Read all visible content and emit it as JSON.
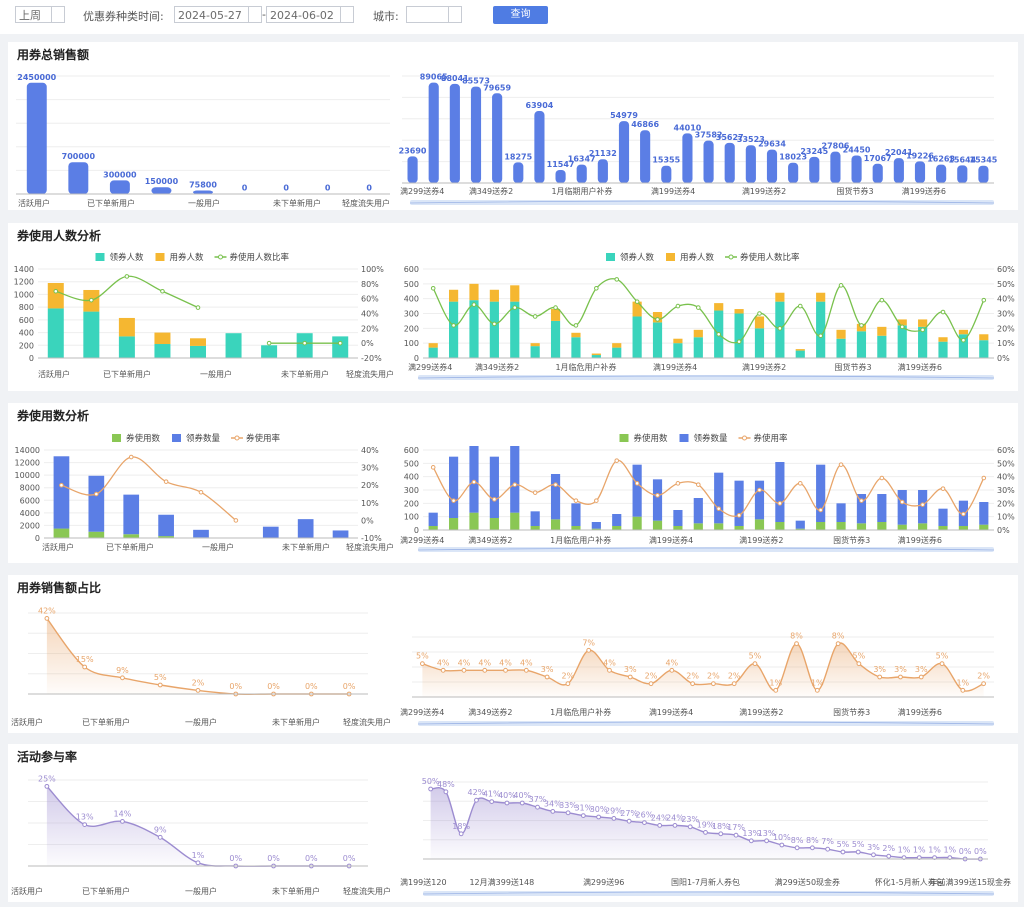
{
  "filters": {
    "period": "上周",
    "date_label": "优惠券种类时间:",
    "date_start": "2024-05-27",
    "date_sep": "-",
    "date_end": "2024-06-02",
    "city_label": "城市:",
    "city_value": "",
    "query_button": "查询"
  },
  "colors": {
    "blue": "#5b7ee5",
    "teal": "#3ad4bc",
    "orange": "#f5b731",
    "green": "#8ac754",
    "line_green": "#79c14d",
    "line_orange": "#e8a56a",
    "purple": "#9c8cd0"
  },
  "sections": [
    {
      "title": "用券总销售额"
    },
    {
      "title": "券使用人数分析"
    },
    {
      "title": "券使用数分析"
    },
    {
      "title": "用券销售额占比"
    },
    {
      "title": "活动参与率"
    }
  ],
  "chart_data": [
    {
      "id": "sales-left",
      "type": "bar",
      "categories": [
        "活跃用户",
        "",
        "已下单新用户",
        "",
        "一般用户",
        "",
        "未下单新用户",
        "",
        "轻度流失用户"
      ],
      "x_labels": [
        "活跃用户",
        "已下单新用户",
        "一般用户",
        "未下单新用户",
        "轻度流失用户"
      ],
      "values": [
        2450000,
        700000,
        300000,
        150000,
        75800,
        0,
        0,
        0,
        0
      ],
      "data_labels": [
        "2450000",
        "700000",
        "300000",
        "150000",
        "75800",
        "0",
        "0",
        "0",
        "0"
      ],
      "ylim": [
        0,
        2600000
      ]
    },
    {
      "id": "sales-right",
      "type": "bar",
      "x_labels": [
        "满299送券4",
        "满349送券2",
        "1月临期用户补券",
        "满199送券4",
        "满199送券2",
        "囤货节券3",
        "满199送券6"
      ],
      "values": [
        23690,
        89065,
        88041,
        85573,
        79659,
        18275,
        63904,
        11547,
        16347,
        21132,
        54979,
        46866,
        15355,
        44010,
        37582,
        35627,
        33523,
        29634,
        18023,
        23245,
        27806,
        24450,
        17067,
        22041,
        19226,
        16263,
        15644,
        15345
      ],
      "data_labels": [
        "23690",
        "89065",
        "88041",
        "85573",
        "79659",
        "18275",
        "63904",
        "11547",
        "16347",
        "21132",
        "54979",
        "46866",
        "15355",
        "44010",
        "37582",
        "35627",
        "33523",
        "29634",
        "18023",
        "23245",
        "27806",
        "24450",
        "17067",
        "22041",
        "19226",
        "16263",
        "15644",
        "15345"
      ],
      "ylim": [
        0,
        95000
      ]
    },
    {
      "id": "people-left",
      "type": "bar",
      "legend": [
        "领券人数",
        "用券人数",
        "券使用人数比率"
      ],
      "x_labels": [
        "活跃用户",
        "已下单新用户",
        "一般用户",
        "未下单新用户",
        "轻度流失用户"
      ],
      "y_ticks": [
        "1400",
        "1200",
        "1000",
        "800",
        "600",
        "400",
        "200",
        "0"
      ],
      "y2_ticks": [
        "100%",
        "80%",
        "60%",
        "40%",
        "20%",
        "0%",
        "-20%"
      ],
      "claim": [
        780,
        730,
        340,
        220,
        190,
        390,
        200,
        390,
        340
      ],
      "use": [
        400,
        340,
        290,
        180,
        120,
        0,
        0,
        0,
        0
      ],
      "ratio": [
        70,
        58,
        90,
        70,
        48,
        null,
        0,
        0,
        0
      ],
      "ylim": [
        0,
        1400
      ],
      "y2lim": [
        -20,
        100
      ]
    },
    {
      "id": "people-right",
      "type": "bar",
      "legend": [
        "领券人数",
        "用券人数",
        "券使用人数比率"
      ],
      "x_labels": [
        "满299送券4",
        "满349送券2",
        "1月临危用户补券",
        "满199送券4",
        "满199送券2",
        "囤货节券3",
        "满199送券6"
      ],
      "y_ticks": [
        "600",
        "500",
        "400",
        "300",
        "200",
        "100",
        "0"
      ],
      "y2_ticks": [
        "60%",
        "50%",
        "40%",
        "30%",
        "20%",
        "10%",
        "0%"
      ],
      "claim": [
        70,
        380,
        390,
        380,
        380,
        80,
        250,
        140,
        20,
        70,
        280,
        240,
        100,
        140,
        320,
        300,
        200,
        380,
        50,
        380,
        130,
        180,
        150,
        220,
        210,
        110,
        160,
        120
      ],
      "use": [
        30,
        80,
        110,
        80,
        110,
        20,
        80,
        30,
        10,
        30,
        100,
        70,
        30,
        50,
        50,
        30,
        80,
        60,
        10,
        60,
        60,
        50,
        60,
        40,
        50,
        30,
        30,
        40
      ],
      "ratio": [
        47,
        22,
        36,
        23,
        34,
        28,
        34,
        22,
        47,
        53,
        38,
        26,
        35,
        34,
        16,
        11,
        30,
        20,
        35,
        15,
        49,
        22,
        39,
        21,
        19,
        31,
        12,
        39
      ],
      "ylim": [
        0,
        600
      ],
      "y2lim": [
        0,
        60
      ]
    },
    {
      "id": "count-left",
      "type": "bar",
      "legend": [
        "券使用数",
        "领券数量",
        "券使用率"
      ],
      "x_labels": [
        "活跃用户",
        "已下单新用户",
        "一般用户",
        "未下单新用户",
        "轻度流失用户"
      ],
      "y_ticks": [
        "14000",
        "12000",
        "10000",
        "8000",
        "6000",
        "4000",
        "2000",
        "0"
      ],
      "y2_ticks": [
        "40%",
        "30%",
        "20%",
        "10%",
        "0%",
        "-10%"
      ],
      "used": [
        1500,
        1000,
        600,
        300,
        100,
        0,
        0,
        0,
        0
      ],
      "claimed": [
        11500,
        8900,
        6300,
        3400,
        1200,
        0,
        1800,
        3000,
        1200
      ],
      "rate": [
        20,
        15,
        36,
        22,
        16,
        0,
        null,
        null,
        null
      ],
      "ylim": [
        0,
        14000
      ],
      "y2lim": [
        -10,
        40
      ]
    },
    {
      "id": "count-right",
      "type": "bar",
      "legend": [
        "券使用数",
        "领券数量",
        "券使用率"
      ],
      "x_labels": [
        "满299送券4",
        "满349送券2",
        "1月临危用户补券",
        "满199送券4",
        "满199送券2",
        "囤货节券3",
        "满199送券6"
      ],
      "y_ticks": [
        "600",
        "500",
        "400",
        "300",
        "200",
        "100",
        "0"
      ],
      "y2_ticks": [
        "60%",
        "50%",
        "40%",
        "30%",
        "20%",
        "10%",
        "0%"
      ],
      "used": [
        30,
        90,
        130,
        90,
        130,
        30,
        80,
        30,
        10,
        30,
        100,
        70,
        30,
        50,
        50,
        30,
        80,
        60,
        10,
        60,
        60,
        50,
        60,
        40,
        50,
        30,
        30,
        40
      ],
      "claimed": [
        100,
        460,
        500,
        460,
        500,
        110,
        340,
        170,
        50,
        90,
        390,
        310,
        120,
        190,
        380,
        340,
        290,
        450,
        60,
        430,
        140,
        220,
        210,
        260,
        250,
        130,
        190,
        170
      ],
      "rate": [
        47,
        22,
        36,
        23,
        34,
        28,
        34,
        22,
        22,
        52,
        35,
        26,
        35,
        34,
        16,
        11,
        30,
        20,
        35,
        15,
        49,
        22,
        39,
        21,
        19,
        31,
        12,
        39
      ],
      "ylim": [
        0,
        600
      ],
      "y2lim": [
        0,
        60
      ]
    },
    {
      "id": "share-left",
      "type": "area",
      "x_labels": [
        "活跃用户",
        "已下单新用户",
        "一般用户",
        "未下单新用户",
        "轻度流失用户"
      ],
      "values": [
        42,
        15,
        9,
        5,
        2,
        0,
        0,
        0,
        0
      ],
      "data_labels": [
        "42%",
        "15%",
        "9%",
        "5%",
        "2%",
        "0%",
        "0%",
        "0%",
        "0%"
      ],
      "ylim": [
        0,
        45
      ]
    },
    {
      "id": "share-right",
      "type": "area",
      "x_labels": [
        "满299送券4",
        "满349送券2",
        "1月临危用户补券",
        "满199送券4",
        "满199送券2",
        "囤货节券3",
        "满199送券6"
      ],
      "values": [
        5,
        4,
        4,
        4,
        4,
        4,
        3,
        2,
        7,
        4,
        3,
        2,
        4,
        2,
        2,
        2,
        5,
        1,
        8,
        1,
        8,
        5,
        3,
        3,
        3,
        5,
        1,
        2
      ],
      "data_labels": [
        "5%",
        "4%",
        "4%",
        "4%",
        "4%",
        "4%",
        "3%",
        "2%",
        "7%",
        "4%",
        "3%",
        "2%",
        "4%",
        "2%",
        "2%",
        "2%",
        "5%",
        "1%",
        "8%",
        "1%",
        "8%",
        "5%",
        "3%",
        "3%",
        "3%",
        "5%",
        "1%",
        "2%"
      ],
      "ylim": [
        0,
        9
      ]
    },
    {
      "id": "rate-left",
      "type": "area",
      "x_labels": [
        "活跃用户",
        "已下单新用户",
        "一般用户",
        "未下单新用户",
        "轻度流失用户"
      ],
      "values": [
        25,
        13,
        14,
        9,
        1,
        0,
        0,
        0,
        0
      ],
      "data_labels": [
        "25%",
        "13%",
        "14%",
        "9%",
        "1%",
        "0%",
        "0%",
        "0%",
        "0%"
      ],
      "ylim": [
        0,
        27
      ]
    },
    {
      "id": "rate-right",
      "type": "area",
      "x_labels": [
        "满199送120",
        "12月满399送148",
        "满299送96",
        "国阳1-7月新人券包",
        "满299送50现金券",
        "怀化1-5月新人券包",
        "年前满399送15现金券"
      ],
      "values": [
        50,
        48,
        18,
        42,
        41,
        40,
        40,
        37,
        34,
        33,
        31,
        30,
        29,
        27,
        26,
        24,
        24,
        23,
        19,
        18,
        17,
        13,
        13,
        10,
        8,
        8,
        7,
        5,
        5,
        3,
        2,
        1,
        1,
        1,
        1,
        0,
        0
      ],
      "data_labels": [
        "50%",
        "48%",
        "18%",
        "42%",
        "41%",
        "40%",
        "40%",
        "37%",
        "34%",
        "33%",
        "31%",
        "30%",
        "29%",
        "27%",
        "26%",
        "24%",
        "24%",
        "23%",
        "19%",
        "18%",
        "17%",
        "13%",
        "13%",
        "10%",
        "8%",
        "8%",
        "7%",
        "5%",
        "5%",
        "3%",
        "2%",
        "1%",
        "1%",
        "1%",
        "1%",
        "0%",
        "0%"
      ],
      "ylim": [
        0,
        55
      ]
    }
  ]
}
